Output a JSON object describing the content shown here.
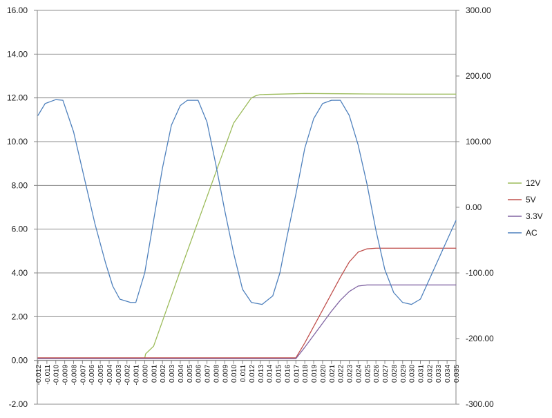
{
  "chart_data": {
    "type": "line",
    "title": "",
    "xlabel": "",
    "ylabel": "",
    "y2label": "",
    "grid": true,
    "legend_position": "right",
    "xlim": [
      -0.012,
      0.035
    ],
    "ylim_left": [
      -2,
      16
    ],
    "ylim_right": [
      -300,
      300
    ],
    "y_left_ticks": [
      "-2.00",
      "0.00",
      "2.00",
      "4.00",
      "6.00",
      "8.00",
      "10.00",
      "12.00",
      "14.00",
      "16.00"
    ],
    "y_right_ticks": [
      "-300.00",
      "-200.00",
      "-100.00",
      "0.00",
      "100.00",
      "200.00",
      "300.00"
    ],
    "x_ticks": [
      "-0.012",
      "-0.011",
      "-0.010",
      "-0.009",
      "-0.008",
      "-0.007",
      "-0.006",
      "-0.005",
      "-0.004",
      "-0.003",
      "-0.002",
      "-0.001",
      "0.000",
      "0.001",
      "0.002",
      "0.003",
      "0.004",
      "0.005",
      "0.006",
      "0.007",
      "0.008",
      "0.009",
      "0.010",
      "0.011",
      "0.012",
      "0.013",
      "0.014",
      "0.015",
      "0.016",
      "0.017",
      "0.018",
      "0.019",
      "0.020",
      "0.021",
      "0.022",
      "0.023",
      "0.024",
      "0.025",
      "0.026",
      "0.027",
      "0.028",
      "0.029",
      "0.030",
      "0.031",
      "0.032",
      "0.033",
      "0.034",
      "0.035"
    ],
    "series": [
      {
        "name": "12V",
        "axis": "left",
        "color": "#9bbb59",
        "x": [
          -0.012,
          0.0,
          0.0001,
          0.001,
          0.002,
          0.004,
          0.006,
          0.008,
          0.01,
          0.012,
          0.0125,
          0.013,
          0.018,
          0.025,
          0.03,
          0.035
        ],
        "y": [
          0.1,
          0.1,
          0.3,
          0.65,
          1.8,
          4.1,
          6.35,
          8.6,
          10.85,
          12.0,
          12.1,
          12.15,
          12.2,
          12.18,
          12.17,
          12.17
        ]
      },
      {
        "name": "5V",
        "axis": "left",
        "color": "#c0504d",
        "x": [
          -0.012,
          0.017,
          0.018,
          0.019,
          0.02,
          0.021,
          0.022,
          0.023,
          0.024,
          0.025,
          0.026,
          0.03,
          0.035
        ],
        "y": [
          0.12,
          0.12,
          0.8,
          1.55,
          2.3,
          3.05,
          3.8,
          4.5,
          4.95,
          5.1,
          5.13,
          5.13,
          5.13
        ]
      },
      {
        "name": "3.3V",
        "axis": "left",
        "color": "#8064a2",
        "x": [
          -0.012,
          0.017,
          0.018,
          0.019,
          0.02,
          0.021,
          0.022,
          0.023,
          0.024,
          0.025,
          0.026,
          0.03,
          0.035
        ],
        "y": [
          0.08,
          0.08,
          0.6,
          1.15,
          1.7,
          2.25,
          2.75,
          3.15,
          3.4,
          3.45,
          3.45,
          3.45,
          3.45
        ]
      },
      {
        "name": "AC",
        "axis": "right",
        "color": "#4f81bd",
        "x": [
          -0.012,
          -0.0112,
          -0.01,
          -0.0092,
          -0.008,
          -0.0068,
          -0.0056,
          -0.0044,
          -0.0036,
          -0.0028,
          -0.0016,
          -0.001,
          0.0,
          0.001,
          0.002,
          0.003,
          0.004,
          0.0048,
          0.006,
          0.007,
          0.008,
          0.009,
          0.01,
          0.011,
          0.012,
          0.0132,
          0.0144,
          0.0152,
          0.016,
          0.017,
          0.018,
          0.019,
          0.02,
          0.021,
          0.022,
          0.023,
          0.024,
          0.025,
          0.026,
          0.027,
          0.028,
          0.029,
          0.03,
          0.031,
          0.032,
          0.033,
          0.034,
          0.035
        ],
        "y": [
          140,
          158,
          164,
          163,
          115,
          45,
          -25,
          -85,
          -120,
          -140,
          -145,
          -145,
          -100,
          -20,
          60,
          125,
          155,
          163,
          163,
          130,
          65,
          -5,
          -70,
          -125,
          -145,
          -148,
          -135,
          -100,
          -45,
          20,
          90,
          135,
          158,
          163,
          163,
          140,
          95,
          35,
          -35,
          -95,
          -130,
          -145,
          -148,
          -140,
          -110,
          -80,
          -50,
          -20
        ]
      }
    ]
  }
}
